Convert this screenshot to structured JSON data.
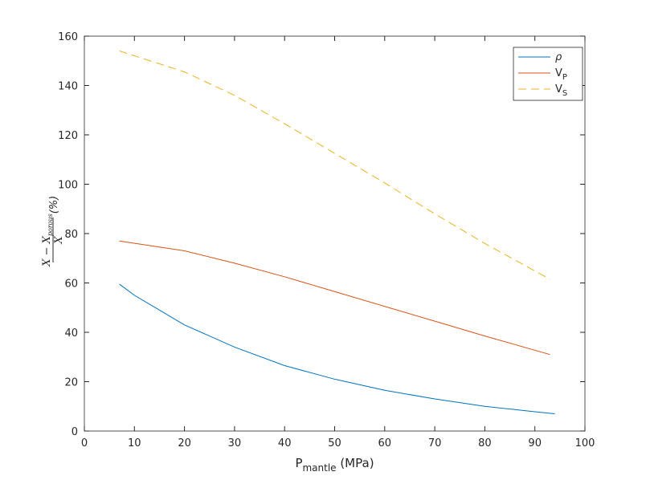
{
  "chart_data": {
    "type": "line",
    "xlabel": {
      "text": "P",
      "sub": "mantle",
      "rest": " (MPa)"
    },
    "ylabel": {
      "numerator": "X − X",
      "numerator_sub": "porous",
      "denominator": "X",
      "unit": "(%)"
    },
    "series": [
      {
        "name": "ρ",
        "color": "#0072bd",
        "dash": false,
        "x": [
          7,
          10,
          20,
          30,
          40,
          50,
          60,
          70,
          80,
          90,
          94
        ],
        "values": [
          59.5,
          55,
          43,
          34,
          26.5,
          21,
          16.5,
          13,
          10,
          7.8,
          7
        ]
      },
      {
        "name": "V",
        "name_sub": "P",
        "color": "#d95319",
        "dash": false,
        "x": [
          7,
          20,
          30,
          40,
          50,
          60,
          70,
          80,
          93
        ],
        "values": [
          77,
          73,
          68,
          62.5,
          56.5,
          50.5,
          44.5,
          38.5,
          31
        ]
      },
      {
        "name": "V",
        "name_sub": "S",
        "color": "#edb120",
        "dash": true,
        "x": [
          7,
          20,
          30,
          40,
          50,
          60,
          70,
          80,
          93
        ],
        "values": [
          154,
          145.5,
          136,
          124.5,
          112.5,
          100.5,
          88,
          76,
          61.5
        ]
      }
    ],
    "xlim": [
      0,
      100
    ],
    "xticks": [
      0,
      10,
      20,
      30,
      40,
      50,
      60,
      70,
      80,
      90,
      100
    ],
    "ylim": [
      0,
      160
    ],
    "yticks": [
      0,
      20,
      40,
      60,
      80,
      100,
      120,
      140,
      160
    ],
    "legend": "top-right",
    "grid": false
  }
}
